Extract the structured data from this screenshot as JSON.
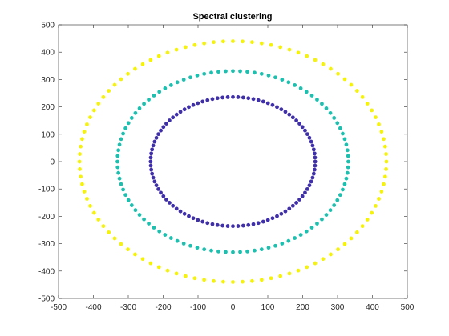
{
  "chart_data": {
    "type": "scatter",
    "title": "Spectral clustering",
    "xlabel": "",
    "ylabel": "",
    "xlim": [
      -500,
      500
    ],
    "ylim": [
      -500,
      500
    ],
    "xticks": [
      -500,
      -400,
      -300,
      -200,
      -100,
      0,
      100,
      200,
      300,
      400,
      500
    ],
    "yticks": [
      -500,
      -400,
      -300,
      -200,
      -100,
      0,
      100,
      200,
      300,
      400,
      500
    ],
    "grid": false,
    "legend": "none",
    "series": [
      {
        "radius": 236,
        "points": 100,
        "color": "#3f2fa8"
      },
      {
        "radius": 331,
        "points": 100,
        "color": "#1fbfb0"
      },
      {
        "radius": 440,
        "points": 100,
        "color": "#f5f20f"
      }
    ]
  }
}
